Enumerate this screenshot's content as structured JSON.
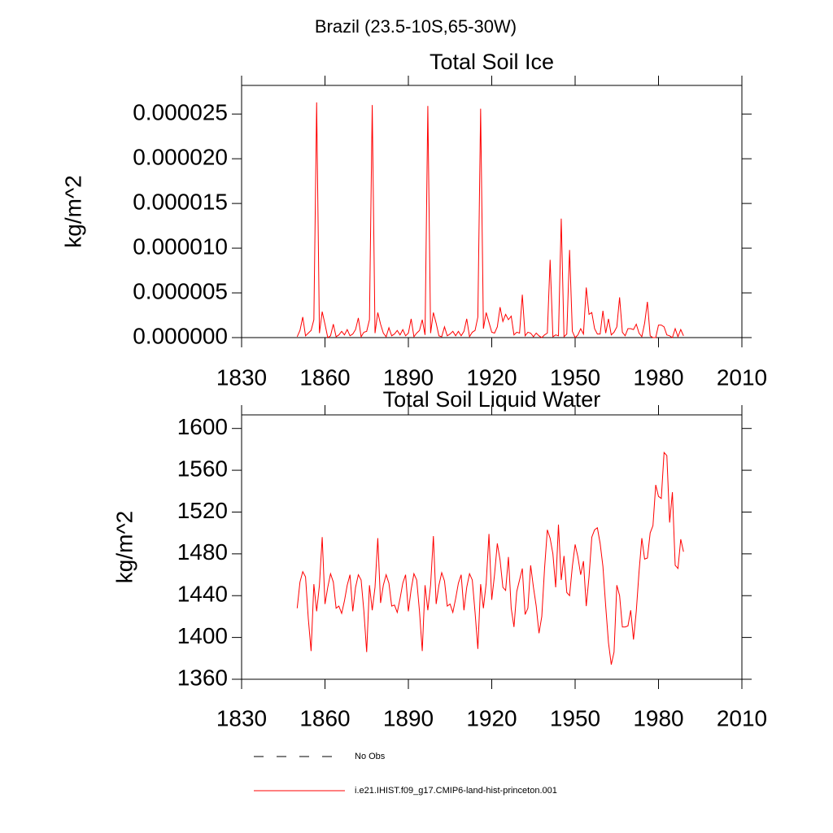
{
  "title": "Brazil (23.5-10S,65-30W)",
  "chart_data": [
    {
      "type": "line",
      "title": "Total Soil Ice",
      "ylabel": "kg/m^2",
      "x": [
        1850,
        1851,
        1852,
        1853,
        1854,
        1855,
        1856,
        1857,
        1858,
        1859,
        1860,
        1861,
        1862,
        1863,
        1864,
        1865,
        1866,
        1867,
        1868,
        1869,
        1870,
        1871,
        1872,
        1873,
        1874,
        1875,
        1876,
        1877,
        1878,
        1879,
        1880,
        1881,
        1882,
        1883,
        1884,
        1885,
        1886,
        1887,
        1888,
        1889,
        1890,
        1891,
        1892,
        1893,
        1894,
        1895,
        1896,
        1897,
        1898,
        1899,
        1900,
        1901,
        1902,
        1903,
        1904,
        1905,
        1906,
        1907,
        1908,
        1909,
        1910,
        1911,
        1912,
        1913,
        1914,
        1915,
        1916,
        1917,
        1918,
        1919,
        1920,
        1921,
        1922,
        1923,
        1924,
        1925,
        1926,
        1927,
        1928,
        1929,
        1930,
        1931,
        1932,
        1933,
        1934,
        1935,
        1936,
        1937,
        1938,
        1939,
        1940,
        1941,
        1942,
        1943,
        1944,
        1945,
        1946,
        1947,
        1948,
        1949,
        1950,
        1951,
        1952,
        1953,
        1954,
        1955,
        1956,
        1957,
        1958,
        1959,
        1960,
        1961,
        1962,
        1963,
        1964,
        1965,
        1966,
        1967,
        1968,
        1969,
        1970,
        1971,
        1972,
        1973,
        1974,
        1975,
        1976,
        1977,
        1978,
        1979,
        1980,
        1981,
        1982,
        1983,
        1984,
        1985,
        1986,
        1987,
        1988,
        1989
      ],
      "series": [
        {
          "color": "#ff0000",
          "values": [
            1e-07,
            8e-07,
            2.3e-06,
            2e-07,
            5e-07,
            8e-07,
            2e-06,
            2.63e-05,
            5e-07,
            2.9e-06,
            1.5e-06,
            0.0,
            2e-07,
            1.5e-06,
            1e-07,
            3e-07,
            7e-07,
            3e-07,
            9e-07,
            2e-07,
            4e-07,
            9e-07,
            2.2e-06,
            1e-07,
            6e-07,
            7e-07,
            2e-06,
            2.6e-05,
            5e-07,
            2.8e-06,
            1.5e-06,
            5e-07,
            1e-07,
            1.1e-06,
            2e-07,
            4e-07,
            8e-07,
            3e-07,
            9e-07,
            2e-07,
            5e-07,
            2.1e-06,
            1e-07,
            5e-07,
            8e-07,
            2e-06,
            3e-07,
            2.59e-05,
            5e-07,
            2.8e-06,
            1.6e-06,
            2e-07,
            1e-07,
            1.2e-06,
            2e-07,
            4e-07,
            7e-07,
            2e-07,
            7e-07,
            2e-07,
            7e-07,
            2.1e-06,
            1e-07,
            6e-07,
            8e-07,
            2.3e-06,
            2.56e-05,
            1e-06,
            2.8e-06,
            1.7e-06,
            6e-07,
            5e-07,
            1.2e-06,
            3.4e-06,
            1.8e-06,
            2.6e-06,
            2e-06,
            2.4e-06,
            3e-07,
            6e-07,
            5e-07,
            4.8e-06,
            2e-07,
            6e-07,
            5e-07,
            1e-07,
            5e-07,
            2e-07,
            0.0,
            3e-07,
            5e-07,
            8.7e-06,
            1e-07,
            3e-07,
            2e-07,
            1.33e-05,
            1e-07,
            4e-07,
            9.8e-06,
            7e-07,
            0.0,
            3e-07,
            1e-06,
            4e-07,
            5.6e-06,
            2.6e-06,
            2.8e-06,
            1e-06,
            4e-07,
            4e-07,
            3e-06,
            5e-07,
            2.1e-06,
            3e-07,
            6e-07,
            1.2e-06,
            4.5e-06,
            6e-07,
            2e-07,
            1e-06,
            1e-06,
            9e-07,
            1.5e-06,
            5e-07,
            1e-07,
            1.6e-06,
            4e-06,
            2e-07,
            0.0,
            0.0,
            1.4e-06,
            1.4e-06,
            1.2e-06,
            3e-07,
            2e-07,
            0.0,
            1e-06,
            1e-07,
            9e-07,
            2e-07
          ]
        }
      ],
      "xlim": [
        1830,
        2010
      ],
      "xticks": [
        1830,
        1860,
        1890,
        1920,
        1950,
        1980,
        2010
      ],
      "ylim": [
        0,
        2.82e-05
      ],
      "yticks": [
        {
          "value": 0,
          "label": "0.000000"
        },
        {
          "value": 5e-06,
          "label": "0.000005"
        },
        {
          "value": 1e-05,
          "label": "0.000010"
        },
        {
          "value": 1.5e-05,
          "label": "0.000015"
        },
        {
          "value": 2e-05,
          "label": "0.000020"
        },
        {
          "value": 2.5e-05,
          "label": "0.000025"
        }
      ]
    },
    {
      "type": "line",
      "title": "Total Soil Liquid Water",
      "ylabel": "kg/m^2",
      "x": [
        1850,
        1851,
        1852,
        1853,
        1854,
        1855,
        1856,
        1857,
        1858,
        1859,
        1860,
        1861,
        1862,
        1863,
        1864,
        1865,
        1866,
        1867,
        1868,
        1869,
        1870,
        1871,
        1872,
        1873,
        1874,
        1875,
        1876,
        1877,
        1878,
        1879,
        1880,
        1881,
        1882,
        1883,
        1884,
        1885,
        1886,
        1887,
        1888,
        1889,
        1890,
        1891,
        1892,
        1893,
        1894,
        1895,
        1896,
        1897,
        1898,
        1899,
        1900,
        1901,
        1902,
        1903,
        1904,
        1905,
        1906,
        1907,
        1908,
        1909,
        1910,
        1911,
        1912,
        1913,
        1914,
        1915,
        1916,
        1917,
        1918,
        1919,
        1920,
        1921,
        1922,
        1923,
        1924,
        1925,
        1926,
        1927,
        1928,
        1929,
        1930,
        1931,
        1932,
        1933,
        1934,
        1935,
        1936,
        1937,
        1938,
        1939,
        1940,
        1941,
        1942,
        1943,
        1944,
        1945,
        1946,
        1947,
        1948,
        1949,
        1950,
        1951,
        1952,
        1953,
        1954,
        1955,
        1956,
        1957,
        1958,
        1959,
        1960,
        1961,
        1962,
        1963,
        1964,
        1965,
        1966,
        1967,
        1968,
        1969,
        1970,
        1971,
        1972,
        1973,
        1974,
        1975,
        1976,
        1977,
        1978,
        1979,
        1980,
        1981,
        1982,
        1983,
        1984,
        1985,
        1986,
        1987,
        1988,
        1989
      ],
      "series": [
        {
          "color": "#ff0000",
          "values": [
            1428,
            1453,
            1463,
            1458,
            1418,
            1387,
            1451,
            1425,
            1450,
            1496,
            1432,
            1448,
            1461,
            1453,
            1428,
            1430,
            1423,
            1435,
            1450,
            1460,
            1425,
            1448,
            1460,
            1455,
            1425,
            1386,
            1450,
            1426,
            1448,
            1495,
            1433,
            1450,
            1460,
            1452,
            1430,
            1431,
            1424,
            1437,
            1452,
            1460,
            1425,
            1446,
            1461,
            1455,
            1425,
            1387,
            1450,
            1426,
            1450,
            1497,
            1432,
            1450,
            1462,
            1454,
            1430,
            1432,
            1424,
            1437,
            1452,
            1460,
            1426,
            1448,
            1461,
            1455,
            1424,
            1389,
            1451,
            1428,
            1452,
            1499,
            1436,
            1460,
            1490,
            1474,
            1448,
            1445,
            1477,
            1428,
            1410,
            1444,
            1455,
            1466,
            1422,
            1428,
            1469,
            1448,
            1430,
            1404,
            1420,
            1466,
            1503,
            1495,
            1480,
            1448,
            1508,
            1455,
            1478,
            1443,
            1440,
            1468,
            1489,
            1477,
            1460,
            1473,
            1430,
            1458,
            1496,
            1503,
            1505,
            1490,
            1468,
            1430,
            1395,
            1374,
            1386,
            1450,
            1440,
            1410,
            1410,
            1411,
            1426,
            1398,
            1425,
            1463,
            1495,
            1475,
            1476,
            1500,
            1507,
            1546,
            1535,
            1533,
            1577,
            1574,
            1510,
            1539,
            1469,
            1466,
            1494,
            1482
          ]
        }
      ],
      "xlim": [
        1830,
        2010
      ],
      "xticks": [
        1830,
        1860,
        1890,
        1920,
        1950,
        1980,
        2010
      ],
      "ylim": [
        1360,
        1613
      ],
      "yticks": [
        1360,
        1400,
        1440,
        1480,
        1520,
        1560,
        1600
      ]
    }
  ],
  "legend": [
    {
      "label": "No Obs",
      "color": "#000000",
      "style": "dashed"
    },
    {
      "label": "i.e21.IHIST.f09_g17.CMIP6-land-hist-princeton.001",
      "color": "#ff0000",
      "style": "solid"
    }
  ]
}
